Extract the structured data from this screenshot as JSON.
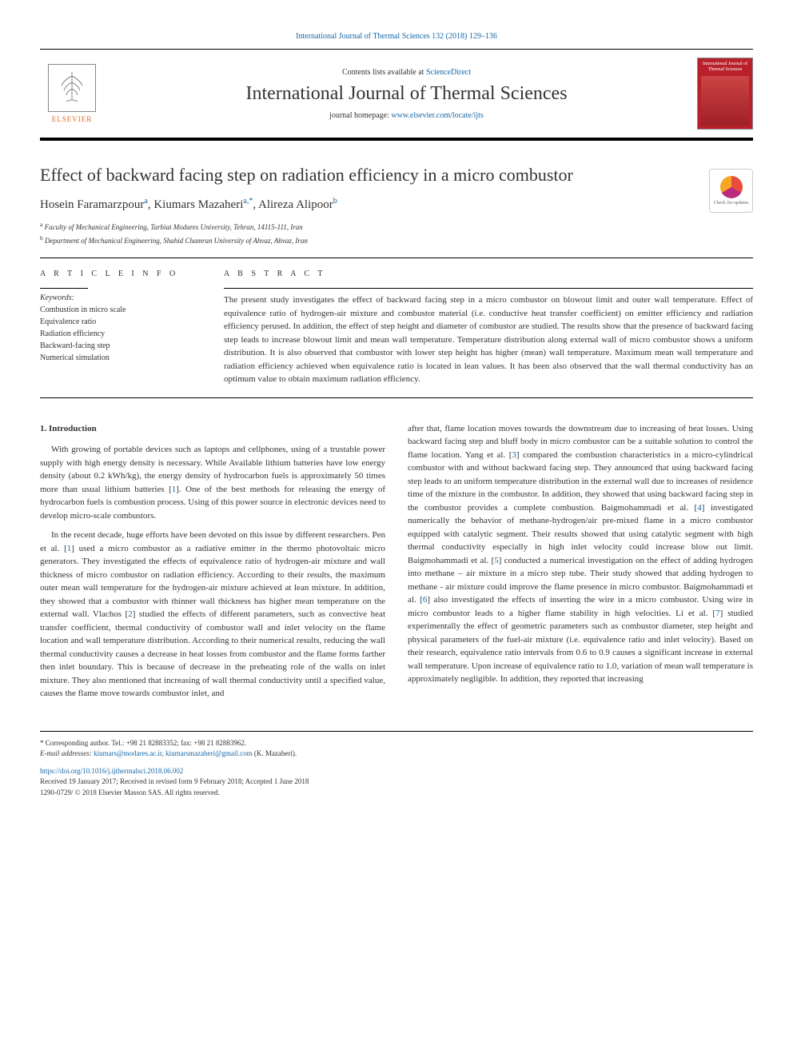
{
  "citation": "International Journal of Thermal Sciences 132 (2018) 129–136",
  "masthead": {
    "contents_prefix": "Contents lists available at ",
    "contents_link": "ScienceDirect",
    "journal_title": "International Journal of Thermal Sciences",
    "homepage_prefix": "journal homepage: ",
    "homepage_link": "www.elsevier.com/locate/ijts",
    "elsevier_label": "ELSEVIER",
    "cover_text": "International Journal of Thermal Sciences"
  },
  "check_updates": "Check for updates",
  "article": {
    "title": "Effect of backward facing step on radiation efficiency in a micro combustor",
    "authors_html": "Hosein Faramarzpour",
    "author1": "Hosein Faramarzpour",
    "sup1": "a",
    "author2": "Kiumars Mazaheri",
    "sup2": "a,",
    "corr": "*",
    "author3": "Alireza Alipoor",
    "sup3": "b",
    "aff_a_sup": "a",
    "aff_a": "Faculty of Mechanical Engineering, Tarbiat Modares University, Tehran, 14115-111, Iran",
    "aff_b_sup": "b",
    "aff_b": "Department of Mechanical Engineering, Shahid Chamran University of Ahvaz, Ahvaz, Iran"
  },
  "info": {
    "heading": "A R T I C L E   I N F O",
    "keywords_label": "Keywords:",
    "keywords": [
      "Combustion in micro scale",
      "Equivalence ratio",
      "Radiation efficiency",
      "Backward-facing step",
      "Numerical simulation"
    ]
  },
  "abstract": {
    "heading": "A B S T R A C T",
    "text": "The present study investigates the effect of backward facing step in a micro combustor on blowout limit and outer wall temperature. Effect of equivalence ratio of hydrogen-air mixture and combustor material (i.e. conductive heat transfer coefficient) on emitter efficiency and radiation efficiency perused. In addition, the effect of step height and diameter of combustor are studied. The results show that the presence of backward facing step leads to increase blowout limit and mean wall temperature. Temperature distribution along external wall of micro combustor shows a uniform distribution. It is also observed that combustor with lower step height has higher (mean) wall temperature. Maximum mean wall temperature and radiation efficiency achieved when equivalence ratio is located in lean values. It has been also observed that the wall thermal conductivity has an optimum value to obtain maximum radiation efficiency."
  },
  "body": {
    "section1_heading": "1. Introduction",
    "col1_p1": "With growing of portable devices such as laptops and cellphones, using of a trustable power supply with high energy density is necessary. While Available lithium batteries have low energy density (about 0.2 kWh/kg), the energy density of hydrocarbon fuels is approximately 50 times more than usual lithium batteries [1]. One of the best methods for releasing the energy of hydrocarbon fuels is combustion process. Using of this power source in electronic devices need to develop micro-scale combustors.",
    "col1_p2": "In the recent decade, huge efforts have been devoted on this issue by different researchers. Pen et al. [1] used a micro combustor as a radiative emitter in the thermo photovoltaic micro generators. They investigated the effects of equivalence ratio of hydrogen-air mixture and wall thickness of micro combustor on radiation efficiency. According to their results, the maximum outer mean wall temperature for the hydrogen-air mixture achieved at lean mixture. In addition, they showed that a combustor with thinner wall thickness has higher mean temperature on the external wall. Vlachos [2] studied the effects of different parameters, such as convective heat transfer coefficient, thermal conductivity of combustor wall and inlet velocity on the flame location and wall temperature distribution. According to their numerical results, reducing the wall thermal conductivity causes a decrease in heat losses from combustor and the flame forms farther then inlet boundary. This is because of decrease in the preheating role of the walls on inlet mixture. They also mentioned that increasing of wall thermal conductivity until a specified value, causes the flame move towards combustor inlet, and",
    "col2_p1": "after that, flame location moves towards the downstream due to increasing of heat losses. Using backward facing step and bluff body in micro combustor can be a suitable solution to control the flame location. Yang et al. [3] compared the combustion characteristics in a micro-cylindrical combustor with and without backward facing step. They announced that using backward facing step leads to an uniform temperature distribution in the external wall due to increases of residence time of the mixture in the combustor. In addition, they showed that using backward facing step in the combustor provides a complete combustion. Baigmohammadi et al. [4] investigated numerically the behavior of methane-hydrogen/air pre-mixed flame in a micro combustor equipped with catalytic segment. Their results showed that using catalytic segment with high thermal conductivity especially in high inlet velocity could increase blow out limit. Baigmohammadi et al. [5] conducted a numerical investigation on the effect of adding hydrogen into methane – air mixture in a micro step tube. Their study showed that adding hydrogen to methane - air mixture could improve the flame presence in micro combustor. Baigmohammadi et al. [6] also investigated the effects of inserting the wire in a micro combustor. Using wire in micro combustor leads to a higher flame stability in high velocities. Li et al. [7] studied experimentally the effect of geometric parameters such as combustor diameter, step height and physical parameters of the fuel-air mixture (i.e. equivalence ratio and inlet velocity). Based on their research, equivalence ratio intervals from 0.6 to 0.9 causes a significant increase in external wall temperature. Upon increase of equivalence ratio to 1.0, variation of mean wall temperature is approximately negligible. In addition, they reported that increasing"
  },
  "footnotes": {
    "corr_label": "* Corresponding author. Tel.: +98 21 82883352; fax: +98 21 82883962.",
    "email_label": "E-mail addresses: ",
    "email1": "kiumars@modares.ac.ir",
    "email_sep": ", ",
    "email2": "kiumarsmazaheri@gmail.com",
    "email_suffix": " (K. Mazaheri).",
    "doi": "https://doi.org/10.1016/j.ijthermalsci.2018.06.002",
    "received": "Received 19 January 2017; Received in revised form 9 February 2018; Accepted 1 June 2018",
    "copyright": "1290-0729/ © 2018 Elsevier Masson SAS. All rights reserved."
  },
  "colors": {
    "link": "#1768a6",
    "elsevier_orange": "#e8641b",
    "cover_red": "#b8202a"
  }
}
